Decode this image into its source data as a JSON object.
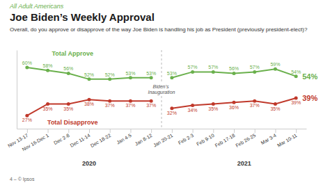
{
  "chart_data": {
    "type": "line",
    "title": "Joe Biden’s Weekly Approval",
    "subtitle": "All Adult Americans",
    "question": "Overall, do you approve or disapprove of the way Joe Biden is handling his job as President (previously president-elect)?",
    "footer": "4 – © Ipsos",
    "categories": [
      "Nov 13-17",
      "Nov 16-Dec 1",
      "Dec 2-8",
      "Dec 11-14",
      "Dec 18-22",
      "Jan 4-5",
      "Jan 8-12",
      "Jan 20-21",
      "Feb 2-3",
      "Feb 9-10",
      "Feb 17-18",
      "Feb 26-25",
      "Mar 3-4",
      "Mar 10-11"
    ],
    "x_groups": [
      {
        "label": "2020",
        "x": 3
      },
      {
        "label": "2021",
        "x": 10.5
      }
    ],
    "series": [
      {
        "name": "Total Approve",
        "color": "#6ab04c",
        "values": [
          60,
          58,
          56,
          52,
          52,
          53,
          53,
          53,
          57,
          57,
          56,
          57,
          59,
          54
        ],
        "value_labels": [
          "60%",
          "58%",
          "56%",
          "52%",
          "52%",
          "53%",
          "53%",
          "53%",
          "57%",
          "57%",
          "56%",
          "57%",
          "59%",
          "54%"
        ]
      },
      {
        "name": "Total Disapprove",
        "color": "#c0392b",
        "values": [
          27,
          35,
          35,
          38,
          37,
          37,
          37,
          32,
          34,
          35,
          36,
          37,
          35,
          39
        ],
        "value_labels": [
          "27%",
          "35%",
          "35%",
          "38%",
          "37%",
          "37%",
          "37%",
          "32%",
          "34%",
          "35%",
          "36%",
          "37%",
          "35%",
          "39%"
        ]
      }
    ],
    "annotations": [
      {
        "text": "Biden’s\nInauguration",
        "x": 6.5
      }
    ],
    "ylim": [
      18,
      72
    ],
    "marker": "circle",
    "data_labels": true,
    "tick_labels": "x"
  }
}
